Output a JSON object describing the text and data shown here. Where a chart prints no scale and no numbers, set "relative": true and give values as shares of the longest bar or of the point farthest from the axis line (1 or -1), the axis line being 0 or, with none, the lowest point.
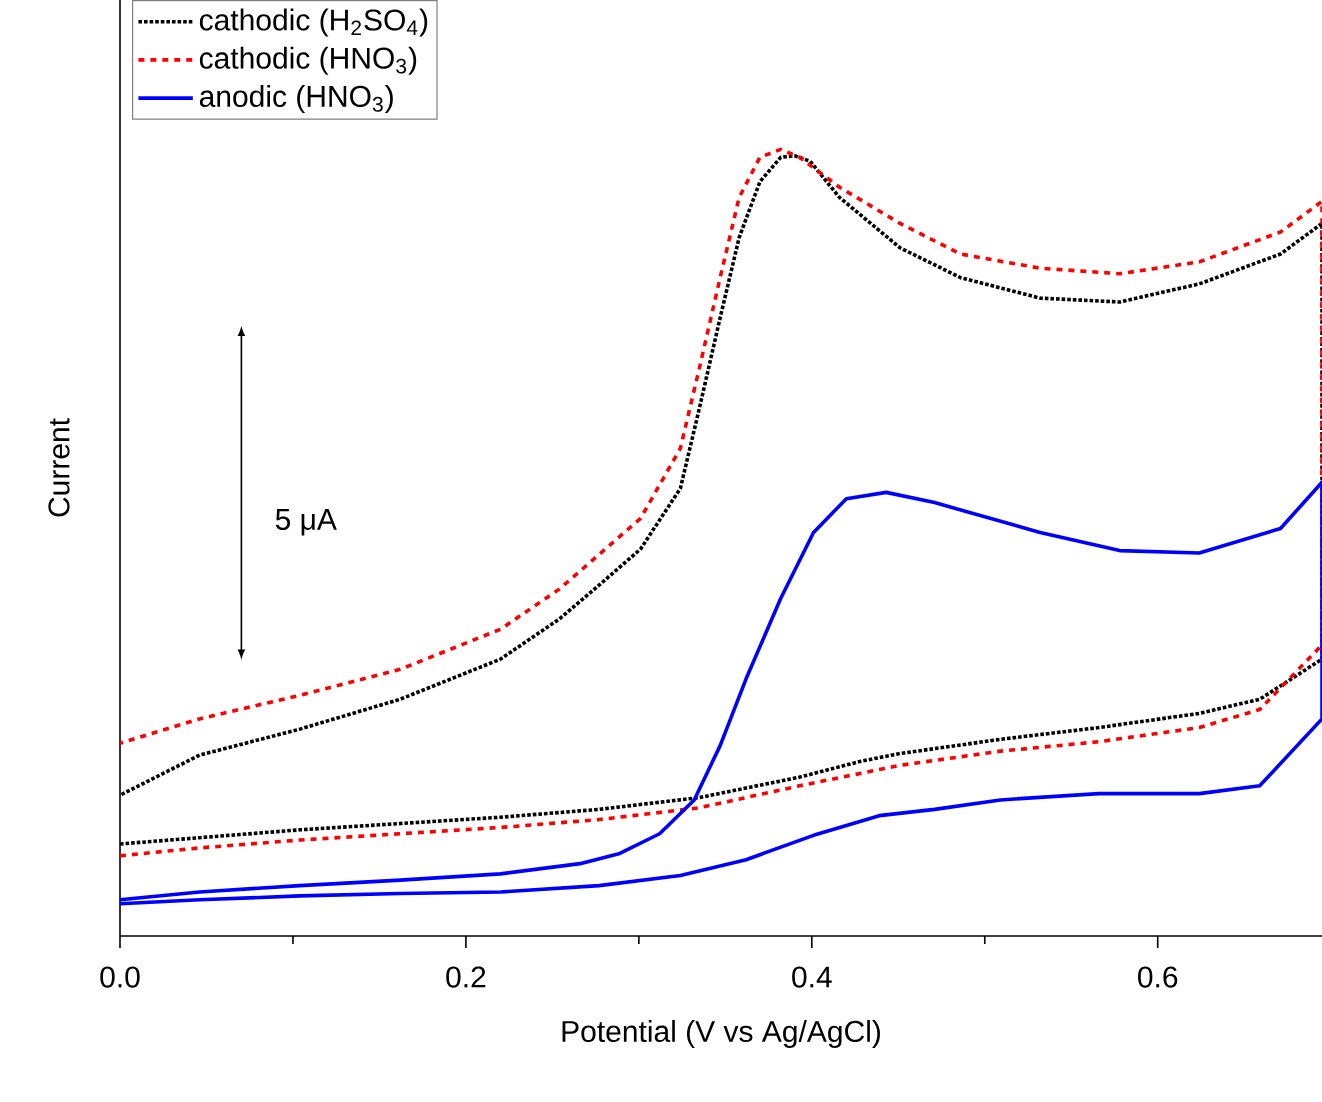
{
  "chart_data": {
    "type": "line",
    "relative": true,
    "xlabel": "Potential (V vs Ag/AgCl)",
    "ylabel": "Current",
    "xlim": [
      0,
      0.695
    ],
    "xticks": [
      {
        "value": 0,
        "label": "0.0"
      },
      {
        "value": 0.1,
        "label": null
      },
      {
        "value": 0.2,
        "label": "0.2"
      },
      {
        "value": 0.3,
        "label": null
      },
      {
        "value": 0.4,
        "label": "0.4"
      },
      {
        "value": 0.5,
        "label": null
      },
      {
        "value": 0.6,
        "label": "0.6"
      }
    ],
    "tick_labels": "x",
    "legend": "top left",
    "grid": false,
    "marker": "none",
    "annotations": [
      "5 μA"
    ],
    "series": [
      {
        "name": "cathodic (H$_{2}$SO$_{4}$)",
        "color": "#000000",
        "line_style": "dotted",
        "x": [
          0,
          0.046,
          0.104,
          0.162,
          0.22,
          0.277,
          0.335,
          0.393,
          0.428,
          0.451,
          0.509,
          0.566,
          0.624,
          0.659,
          0.695,
          0.695,
          0.671,
          0.624,
          0.578,
          0.532,
          0.486,
          0.451,
          0.416,
          0.399,
          0.39,
          0.382,
          0.37,
          0.358,
          0.347,
          0.335,
          0.324,
          0.301,
          0.277,
          0.254,
          0.22,
          0.162,
          0.104,
          0.046,
          0
        ],
        "values": [
          0.117,
          0.125,
          0.135,
          0.143,
          0.151,
          0.161,
          0.176,
          0.202,
          0.222,
          0.232,
          0.25,
          0.265,
          0.283,
          0.301,
          0.352,
          0.906,
          0.867,
          0.829,
          0.806,
          0.811,
          0.837,
          0.875,
          0.939,
          0.985,
          0.992,
          0.99,
          0.959,
          0.888,
          0.786,
          0.671,
          0.569,
          0.492,
          0.446,
          0.403,
          0.352,
          0.301,
          0.263,
          0.23,
          0.179
        ]
      },
      {
        "name": "cathodic (HNO$_{3}$)",
        "color": "#ff0000",
        "line_style": "dashed",
        "x": [
          0,
          0.046,
          0.104,
          0.162,
          0.22,
          0.277,
          0.335,
          0.393,
          0.451,
          0.509,
          0.566,
          0.624,
          0.659,
          0.695,
          0.695,
          0.671,
          0.624,
          0.578,
          0.532,
          0.486,
          0.451,
          0.416,
          0.393,
          0.382,
          0.37,
          0.358,
          0.347,
          0.335,
          0.324,
          0.301,
          0.277,
          0.254,
          0.22,
          0.162,
          0.104,
          0.046,
          0
        ],
        "values": [
          0.102,
          0.112,
          0.122,
          0.13,
          0.138,
          0.148,
          0.163,
          0.191,
          0.217,
          0.235,
          0.247,
          0.265,
          0.288,
          0.37,
          0.934,
          0.895,
          0.857,
          0.842,
          0.849,
          0.867,
          0.906,
          0.952,
          0.99,
          1.0,
          0.99,
          0.939,
          0.837,
          0.722,
          0.62,
          0.531,
          0.485,
          0.441,
          0.39,
          0.339,
          0.306,
          0.276,
          0.245
        ]
      },
      {
        "name": "anodic (HNO$_{3}$)",
        "color": "#0000ff",
        "line_style": "solid",
        "x": [
          0,
          0.046,
          0.104,
          0.162,
          0.22,
          0.277,
          0.324,
          0.362,
          0.401,
          0.439,
          0.471,
          0.509,
          0.566,
          0.624,
          0.659,
          0.695,
          0.695,
          0.671,
          0.624,
          0.578,
          0.532,
          0.471,
          0.443,
          0.42,
          0.401,
          0.382,
          0.362,
          0.347,
          0.332,
          0.312,
          0.289,
          0.266,
          0.22,
          0.162,
          0.104,
          0.046,
          0
        ],
        "values": [
          0.041,
          0.046,
          0.051,
          0.054,
          0.056,
          0.064,
          0.077,
          0.097,
          0.128,
          0.153,
          0.161,
          0.173,
          0.181,
          0.181,
          0.191,
          0.276,
          0.577,
          0.518,
          0.487,
          0.49,
          0.513,
          0.551,
          0.564,
          0.556,
          0.513,
          0.429,
          0.327,
          0.242,
          0.173,
          0.13,
          0.105,
          0.092,
          0.079,
          0.071,
          0.064,
          0.056,
          0.046
        ]
      }
    ]
  }
}
